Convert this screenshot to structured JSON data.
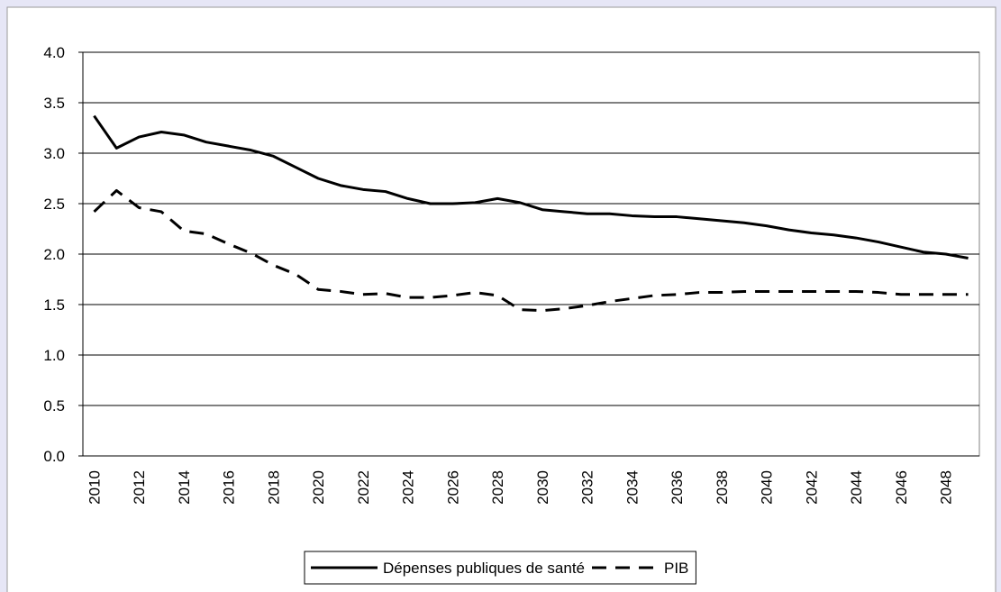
{
  "chart_data": {
    "type": "line",
    "categories": [
      "2010",
      null,
      "2012",
      null,
      "2014",
      null,
      "2016",
      null,
      "2018",
      null,
      "2020",
      null,
      "2022",
      null,
      "2024",
      null,
      "2026",
      null,
      "2028",
      null,
      "2030",
      null,
      "2032",
      null,
      "2034",
      null,
      "2036",
      null,
      "2038",
      null,
      "2040",
      null,
      "2042",
      null,
      "2044",
      null,
      "2046",
      null,
      "2048",
      null
    ],
    "series": [
      {
        "name": "Dépenses publiques de santé",
        "color": "#000000",
        "line_style": "solid",
        "values": [
          3.37,
          3.05,
          3.16,
          3.21,
          3.18,
          3.11,
          3.07,
          3.03,
          2.97,
          2.86,
          2.75,
          2.68,
          2.64,
          2.62,
          2.55,
          2.5,
          2.5,
          2.51,
          2.55,
          2.51,
          2.44,
          2.42,
          2.4,
          2.4,
          2.38,
          2.37,
          2.37,
          2.35,
          2.33,
          2.31,
          2.28,
          2.24,
          2.21,
          2.19,
          2.16,
          2.12,
          2.07,
          2.02,
          2.0,
          1.96
        ]
      },
      {
        "name": "PIB",
        "color": "#000000",
        "line_style": "dashed",
        "values": [
          2.42,
          2.63,
          2.46,
          2.42,
          2.23,
          2.2,
          2.1,
          2.01,
          1.89,
          1.8,
          1.65,
          1.63,
          1.6,
          1.61,
          1.57,
          1.57,
          1.59,
          1.62,
          1.59,
          1.45,
          1.44,
          1.46,
          1.49,
          1.53,
          1.56,
          1.59,
          1.6,
          1.62,
          1.62,
          1.63,
          1.63,
          1.63,
          1.63,
          1.63,
          1.63,
          1.62,
          1.6,
          1.6,
          1.6,
          1.6
        ]
      }
    ],
    "ylim": [
      0,
      4
    ],
    "yticks": [
      {
        "value": 0,
        "label": "0.0"
      },
      {
        "value": 0.5,
        "label": "0.5"
      },
      {
        "value": 1,
        "label": "1.0"
      },
      {
        "value": 1.5,
        "label": "1.5"
      },
      {
        "value": 2,
        "label": "2.0"
      },
      {
        "value": 2.5,
        "label": "2.5"
      },
      {
        "value": 3,
        "label": "3.0"
      },
      {
        "value": 3.5,
        "label": "3.5"
      },
      {
        "value": 4,
        "label": "4.0"
      }
    ],
    "grid": true,
    "legend": "bottom"
  }
}
